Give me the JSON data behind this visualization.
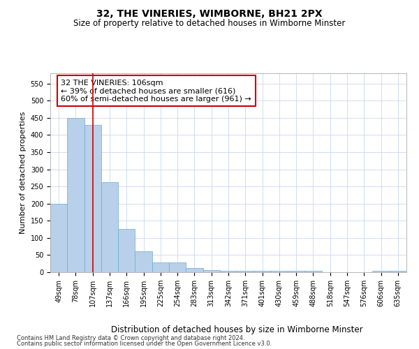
{
  "title": "32, THE VINERIES, WIMBORNE, BH21 2PX",
  "subtitle": "Size of property relative to detached houses in Wimborne Minster",
  "xlabel": "Distribution of detached houses by size in Wimborne Minster",
  "ylabel": "Number of detached properties",
  "footer1": "Contains HM Land Registry data © Crown copyright and database right 2024.",
  "footer2": "Contains public sector information licensed under the Open Government Licence v3.0.",
  "categories": [
    "49sqm",
    "78sqm",
    "107sqm",
    "137sqm",
    "166sqm",
    "195sqm",
    "225sqm",
    "254sqm",
    "283sqm",
    "313sqm",
    "342sqm",
    "371sqm",
    "401sqm",
    "430sqm",
    "459sqm",
    "488sqm",
    "518sqm",
    "547sqm",
    "576sqm",
    "606sqm",
    "635sqm"
  ],
  "values": [
    200,
    450,
    430,
    263,
    127,
    61,
    29,
    29,
    13,
    7,
    5,
    5,
    5,
    5,
    5,
    4,
    0,
    0,
    0,
    4,
    4
  ],
  "bar_color": "#b8d0ea",
  "bar_edge_color": "#6aaad4",
  "annotation_box_text": "32 THE VINERIES: 106sqm\n← 39% of detached houses are smaller (616)\n60% of semi-detached houses are larger (961) →",
  "annotation_box_color": "#ffffff",
  "annotation_box_edge_color": "#cc0000",
  "vline_x": 2,
  "vline_color": "#cc0000",
  "ylim": [
    0,
    580
  ],
  "yticks": [
    0,
    50,
    100,
    150,
    200,
    250,
    300,
    350,
    400,
    450,
    500,
    550
  ],
  "background_color": "#ffffff",
  "grid_color": "#c8d8ee",
  "title_fontsize": 10,
  "subtitle_fontsize": 8.5,
  "tick_fontsize": 7,
  "ylabel_fontsize": 8,
  "xlabel_fontsize": 8.5,
  "annotation_fontsize": 8,
  "footer_fontsize": 6
}
